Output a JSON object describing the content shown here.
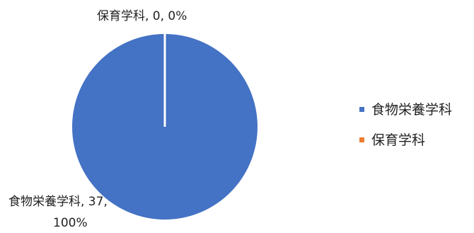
{
  "chart_data": {
    "type": "pie",
    "categories": [
      "食物栄養学科",
      "保育学科"
    ],
    "values": [
      37,
      0
    ],
    "percents": [
      "100%",
      "0%"
    ],
    "colors": [
      "#4472C4",
      "#ED7D31"
    ],
    "separator_color": "#ffffff",
    "data_labels": [
      {
        "line1": "食物栄養学科, 37,",
        "line2": "100%"
      },
      {
        "line1": "保育学科, 0, 0%",
        "line2": ""
      }
    ],
    "legend": {
      "position": "right",
      "entries": [
        "食物栄養学科",
        "保育学科"
      ]
    }
  }
}
